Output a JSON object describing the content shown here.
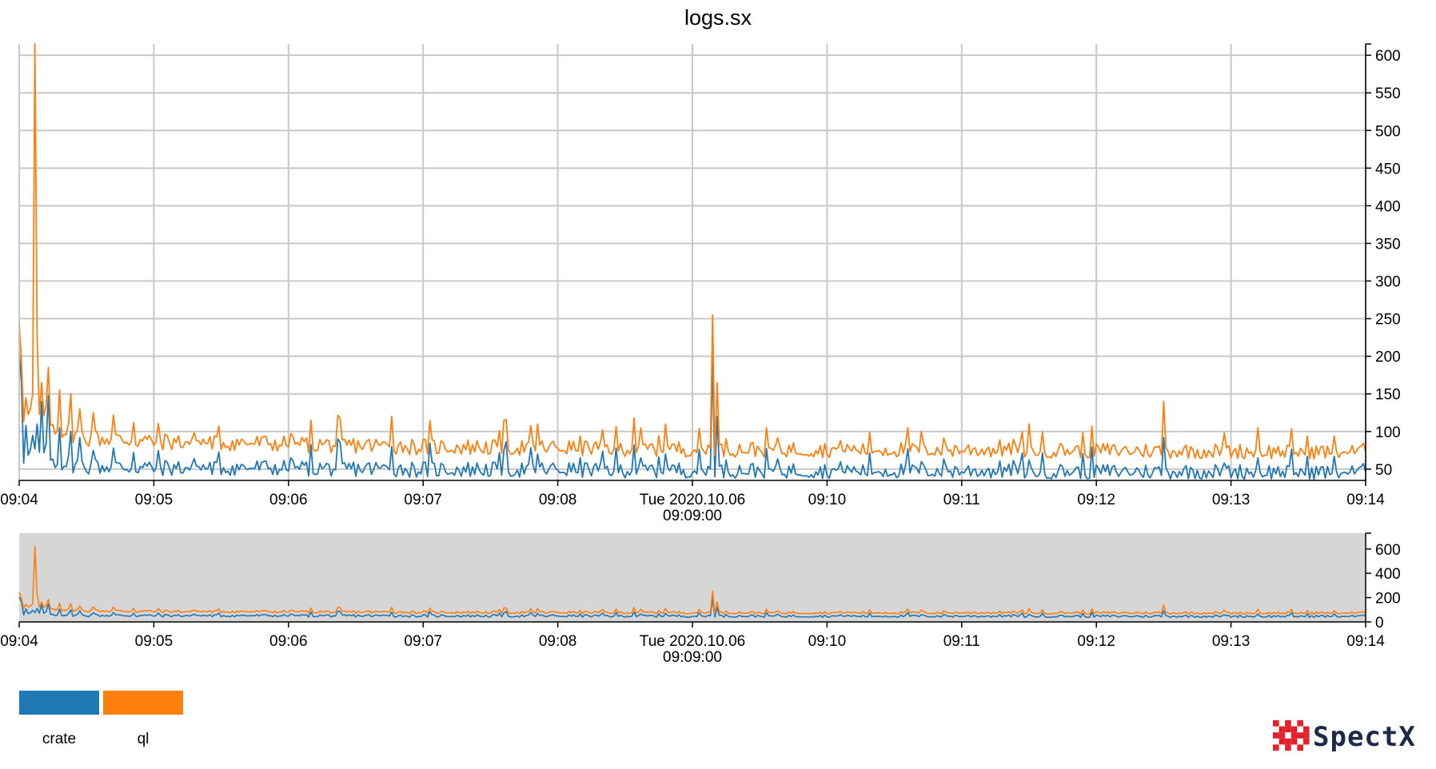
{
  "colors": {
    "crate": "#1f77b4",
    "ql": "#ff7f0e",
    "grid": "#c8c8c8",
    "brush_bg": "#d6d6d6",
    "logo_red": "#e4202b",
    "logo_text": "#1c2a47"
  },
  "brand": {
    "name": "SpectX",
    "icon": "spectx-pixel-logo-icon"
  },
  "chart_data": [
    {
      "type": "line",
      "title": "logs.sx",
      "x_range": [
        "09:04",
        "09:14"
      ],
      "x_ticks": [
        "09:04",
        "09:05",
        "09:06",
        "09:07",
        "09:08",
        "Tue 2020.10.06|09:09:00",
        "09:10",
        "09:11",
        "09:12",
        "09:13",
        "09:14"
      ],
      "y_ticks": [
        50,
        100,
        150,
        200,
        250,
        300,
        350,
        400,
        450,
        500,
        550,
        600
      ],
      "ylim": [
        35,
        615
      ],
      "y_axis_side": "right",
      "grid": true,
      "sample_interval_seconds": 1,
      "series": [
        {
          "name": "crate",
          "color": "#1f77b4",
          "baseline": [
            [
              0,
              70
            ],
            [
              0.1,
              67
            ],
            [
              0.5,
              54
            ],
            [
              1,
              52
            ],
            [
              2,
              52
            ],
            [
              3,
              50
            ],
            [
              5,
              49
            ],
            [
              6,
              48
            ],
            [
              7,
              48
            ],
            [
              8,
              47
            ],
            [
              9,
              47
            ],
            [
              10,
              46
            ]
          ],
          "spikes": [
            [
              0,
              205
            ],
            [
              0.02,
              165
            ],
            [
              0.05,
              108
            ],
            [
              0.1,
              95
            ],
            [
              0.13,
              110
            ],
            [
              0.17,
              140
            ],
            [
              0.22,
              148
            ],
            [
              0.3,
              105
            ],
            [
              0.38,
              100
            ],
            [
              0.45,
              92
            ],
            [
              0.55,
              75
            ],
            [
              0.7,
              78
            ],
            [
              0.85,
              72
            ],
            [
              2.77,
              80
            ],
            [
              3.6,
              75
            ],
            [
              3.85,
              70
            ],
            [
              4.57,
              82
            ],
            [
              4.62,
              65
            ],
            [
              4.8,
              70
            ],
            [
              5.15,
              198
            ],
            [
              5.18,
              120
            ],
            [
              6.7,
              60
            ],
            [
              7.5,
              62
            ],
            [
              8.5,
              92
            ],
            [
              8.95,
              58
            ],
            [
              9.2,
              65
            ]
          ]
        },
        {
          "name": "ql",
          "color": "#ff7f0e",
          "baseline": [
            [
              0,
              130
            ],
            [
              0.1,
              118
            ],
            [
              0.5,
              92
            ],
            [
              1,
              87
            ],
            [
              2,
              84
            ],
            [
              3,
              80
            ],
            [
              5,
              77
            ],
            [
              6,
              76
            ],
            [
              7,
              76
            ],
            [
              8,
              75
            ],
            [
              9,
              74
            ],
            [
              10,
              73
            ]
          ],
          "spikes": [
            [
              0,
              245
            ],
            [
              0.02,
              195
            ],
            [
              0.05,
              145
            ],
            [
              0.1,
              150
            ],
            [
              0.12,
              620
            ],
            [
              0.13,
              225
            ],
            [
              0.17,
              165
            ],
            [
              0.22,
              185
            ],
            [
              0.3,
              155
            ],
            [
              0.38,
              150
            ],
            [
              0.45,
              130
            ],
            [
              0.55,
              125
            ],
            [
              0.7,
              122
            ],
            [
              0.85,
              112
            ],
            [
              2.77,
              120
            ],
            [
              3.6,
              115
            ],
            [
              3.85,
              110
            ],
            [
              4.57,
              118
            ],
            [
              4.62,
              105
            ],
            [
              4.8,
              110
            ],
            [
              5.15,
              255
            ],
            [
              5.18,
              165
            ],
            [
              6.7,
              100
            ],
            [
              7.5,
              110
            ],
            [
              8.5,
              140
            ],
            [
              8.95,
              98
            ],
            [
              9.2,
              105
            ]
          ]
        }
      ]
    },
    {
      "type": "line",
      "role": "overview-navigator",
      "x_range": [
        "09:04",
        "09:14"
      ],
      "x_ticks": [
        "09:04",
        "09:05",
        "09:06",
        "09:07",
        "09:08",
        "Tue 2020.10.06|09:09:00",
        "09:10",
        "09:11",
        "09:12",
        "09:13",
        "09:14"
      ],
      "y_ticks": [
        0,
        200,
        400,
        600
      ],
      "ylim": [
        0,
        730
      ],
      "y_axis_side": "right",
      "grid": false,
      "series_ref": [
        "crate",
        "ql"
      ]
    }
  ],
  "legend": [
    {
      "label": "crate",
      "color": "#1f77b4"
    },
    {
      "label": "ql",
      "color": "#ff7f0e"
    }
  ]
}
